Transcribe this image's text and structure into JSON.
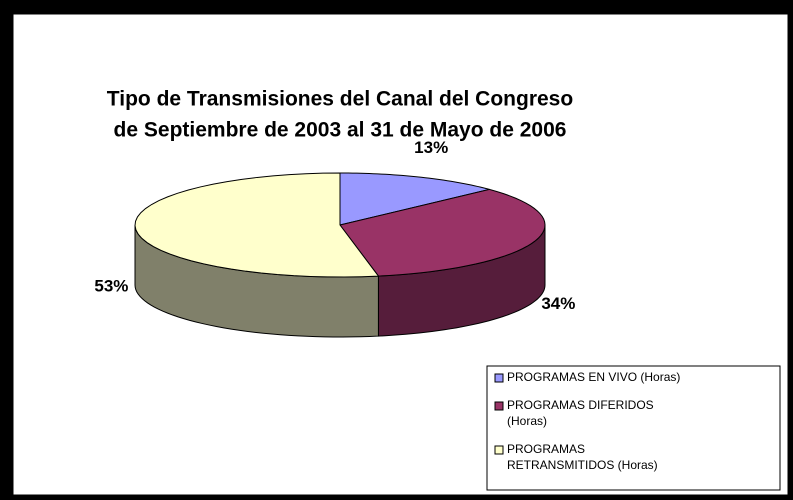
{
  "chart_data": {
    "type": "pie3d",
    "title": [
      "Tipo de Transmisiones del Canal del Congreso",
      "de Septiembre de 2003 al 31 de Mayo de 2006"
    ],
    "categories": [
      "PROGRAMAS EN VIVO (Horas)",
      "PROGRAMAS DIFERIDOS (Horas)",
      "PROGRAMAS RETRANSMITIDOS (Horas)"
    ],
    "values": [
      13,
      34,
      53
    ],
    "value_labels": [
      "13%",
      "34%",
      "53%"
    ],
    "colors": [
      "#9999ff",
      "#993366",
      "#ffffcc"
    ],
    "side_colors": [
      "#5c5c99",
      "#561d3b",
      "#80806a"
    ],
    "legend": "bottom-right"
  }
}
